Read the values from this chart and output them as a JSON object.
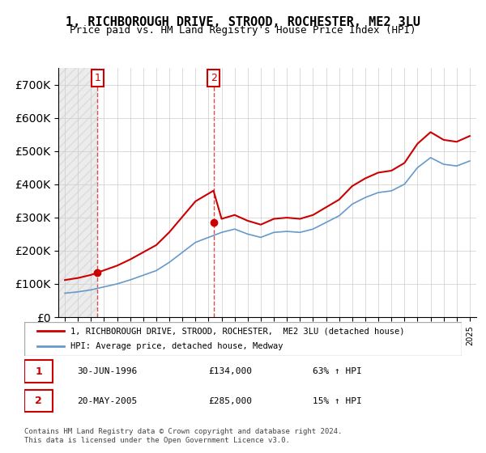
{
  "title": "1, RICHBOROUGH DRIVE, STROOD, ROCHESTER, ME2 3LU",
  "subtitle": "Price paid vs. HM Land Registry's House Price Index (HPI)",
  "legend_line1": "1, RICHBOROUGH DRIVE, STROOD, ROCHESTER,  ME2 3LU (detached house)",
  "legend_line2": "HPI: Average price, detached house, Medway",
  "purchase1_label": "1",
  "purchase1_date": "30-JUN-1996",
  "purchase1_price": "£134,000",
  "purchase1_hpi": "63% ↑ HPI",
  "purchase2_label": "2",
  "purchase2_date": "20-MAY-2005",
  "purchase2_price": "£285,000",
  "purchase2_hpi": "15% ↑ HPI",
  "purchase1_year": 1996.5,
  "purchase1_value": 134000,
  "purchase2_year": 2005.38,
  "purchase2_value": 285000,
  "red_color": "#cc0000",
  "blue_color": "#6699cc",
  "dashed_color": "#cc0000",
  "footer": "Contains HM Land Registry data © Crown copyright and database right 2024.\nThis data is licensed under the Open Government Licence v3.0.",
  "ylim": [
    0,
    750000
  ],
  "xlim_start": 1993.5,
  "xlim_end": 2025.5
}
